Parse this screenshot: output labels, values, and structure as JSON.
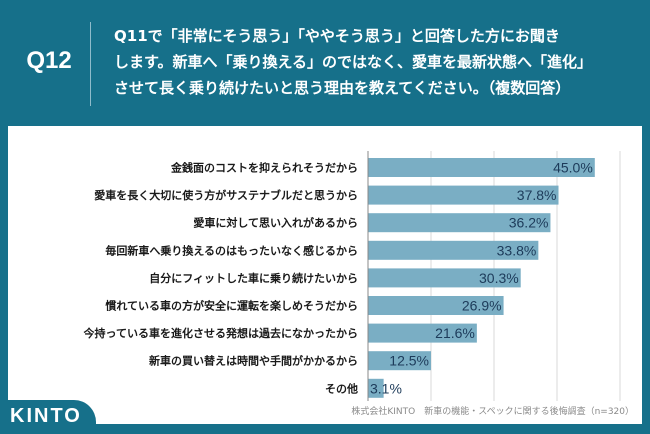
{
  "header": {
    "question_number": "Q12",
    "question_lines": [
      "Q11で「非常にそう思う」「ややそう思う」と回答した方にお聞き",
      "します。新車へ「乗り換える」のではなく、愛車を最新状態へ「進化」",
      "させて長く乗り続けたいと思う理由を教えてください。（複数回答）"
    ]
  },
  "footer": {
    "source": "株式会社KINTO　新車の機能・スペックに関する後悔調査（n=320）",
    "logo": "KINTO"
  },
  "colors": {
    "brand_teal": "#16708a",
    "bar": "#7aaec4",
    "value_text": "#1d3b5a",
    "grid": "#d8d8d8"
  },
  "chart_data": {
    "type": "bar",
    "orientation": "horizontal",
    "title": "",
    "xlabel": "",
    "ylabel": "",
    "xlim": [
      0,
      50
    ],
    "grid": true,
    "gridlines": [
      0,
      12.5,
      25,
      37.5,
      50
    ],
    "unit": "%",
    "categories": [
      "金銭面のコストを抑えられそうだから",
      "愛車を長く大切に使う方がサステナブルだと思うから",
      "愛車に対して思い入れがあるから",
      "毎回新車へ乗り換えるのはもったいなく感じるから",
      "自分にフィットした車に乗り続けたいから",
      "慣れている車の方が安全に運転を楽しめそうだから",
      "今持っている車を進化させる発想は過去になかったから",
      "新車の買い替えは時間や手間がかかるから",
      "その他"
    ],
    "values": [
      45.0,
      37.8,
      36.2,
      33.8,
      30.3,
      26.9,
      21.6,
      12.5,
      3.1
    ],
    "value_labels": [
      "45.0%",
      "37.8%",
      "36.2%",
      "33.8%",
      "30.3%",
      "26.9%",
      "21.6%",
      "12.5%",
      "3.1%"
    ]
  }
}
